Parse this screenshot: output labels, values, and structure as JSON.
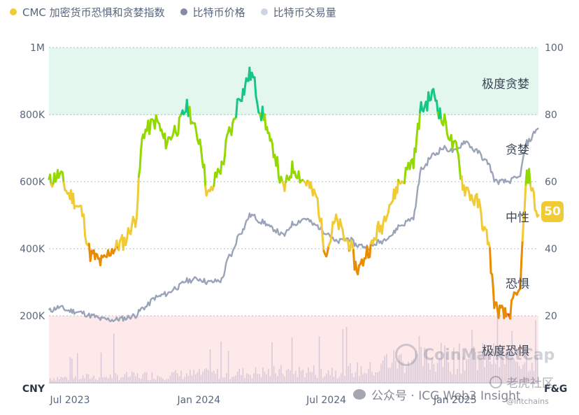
{
  "legend": [
    {
      "label": "CMC 加密货币恐惧和贪婪指数",
      "color": "#f0cb35"
    },
    {
      "label": "比特币价格",
      "color": "#858ca2"
    },
    {
      "label": "比特币交易量",
      "color": "#cfd3e6"
    }
  ],
  "left_axis": {
    "unit": "CNY",
    "ticks": [
      "1M",
      "800K",
      "600K",
      "400K",
      "200K"
    ]
  },
  "right_axis": {
    "unit": "F&G",
    "ticks": [
      "100",
      "80",
      "60",
      "40",
      "20"
    ]
  },
  "x_ticks": [
    "Jul 2023",
    "Jan 2024",
    "Jul 2024",
    "Jan 2025"
  ],
  "zones": {
    "extreme_greed": "极度贪婪",
    "greed": "贪婪",
    "neutral": "中性",
    "fear": "恐惧",
    "extreme_fear": "极度恐惧"
  },
  "current_value": "50",
  "watermarks": {
    "logo": "CoinMarketCap",
    "wechat": "公众号 · ICG Web3 Insight",
    "brand": "老虎社区",
    "handle": "@intchains"
  },
  "chart_data": {
    "type": "line",
    "x_range": [
      "2023-06-01",
      "2025-04-30"
    ],
    "ylim_price": [
      0,
      1000000
    ],
    "ylim_fng": [
      0,
      100
    ],
    "series": [
      {
        "name": "CMC 加密货币恐惧和贪婪指数",
        "axis": "right",
        "x": [
          "2023-06-01",
          "2023-06-15",
          "2023-07-01",
          "2023-07-15",
          "2023-08-01",
          "2023-08-15",
          "2023-09-01",
          "2023-09-15",
          "2023-10-01",
          "2023-10-15",
          "2023-11-01",
          "2023-11-15",
          "2023-12-01",
          "2023-12-15",
          "2024-01-01",
          "2024-01-15",
          "2024-02-01",
          "2024-02-15",
          "2024-03-01",
          "2024-03-15",
          "2024-04-01",
          "2024-04-15",
          "2024-05-01",
          "2024-05-15",
          "2024-06-01",
          "2024-06-15",
          "2024-07-01",
          "2024-07-15",
          "2024-08-01",
          "2024-08-15",
          "2024-09-01",
          "2024-09-15",
          "2024-10-01",
          "2024-10-15",
          "2024-11-01",
          "2024-11-15",
          "2024-12-01",
          "2024-12-15",
          "2025-01-01",
          "2025-01-15",
          "2025-02-01",
          "2025-02-15",
          "2025-03-01",
          "2025-03-15",
          "2025-04-01",
          "2025-04-15",
          "2025-04-30"
        ],
        "values": [
          60,
          62,
          56,
          52,
          38,
          36,
          40,
          42,
          48,
          75,
          78,
          72,
          76,
          82,
          73,
          56,
          64,
          75,
          86,
          92,
          80,
          70,
          58,
          64,
          60,
          56,
          40,
          48,
          42,
          34,
          40,
          46,
          54,
          60,
          66,
          82,
          86,
          78,
          70,
          58,
          54,
          44,
          22,
          20,
          26,
          62,
          50
        ]
      },
      {
        "name": "比特币价格",
        "axis": "left",
        "x": [
          "2023-06-01",
          "2023-06-15",
          "2023-07-01",
          "2023-07-15",
          "2023-08-01",
          "2023-08-15",
          "2023-09-01",
          "2023-09-15",
          "2023-10-01",
          "2023-10-15",
          "2023-11-01",
          "2023-11-15",
          "2023-12-01",
          "2023-12-15",
          "2024-01-01",
          "2024-01-15",
          "2024-02-01",
          "2024-02-15",
          "2024-03-01",
          "2024-03-15",
          "2024-04-01",
          "2024-04-15",
          "2024-05-01",
          "2024-05-15",
          "2024-06-01",
          "2024-06-15",
          "2024-07-01",
          "2024-07-15",
          "2024-08-01",
          "2024-08-15",
          "2024-09-01",
          "2024-09-15",
          "2024-10-01",
          "2024-10-15",
          "2024-11-01",
          "2024-11-15",
          "2024-12-01",
          "2024-12-15",
          "2025-01-01",
          "2025-01-15",
          "2025-02-01",
          "2025-02-15",
          "2025-03-01",
          "2025-03-15",
          "2025-04-01",
          "2025-04-15",
          "2025-04-30"
        ],
        "values": [
          215000,
          225000,
          215000,
          210000,
          200000,
          190000,
          188000,
          192000,
          200000,
          225000,
          255000,
          265000,
          285000,
          305000,
          310000,
          300000,
          305000,
          380000,
          450000,
          500000,
          480000,
          460000,
          440000,
          475000,
          490000,
          470000,
          450000,
          420000,
          430000,
          410000,
          405000,
          420000,
          440000,
          470000,
          490000,
          640000,
          680000,
          700000,
          690000,
          720000,
          690000,
          660000,
          600000,
          600000,
          610000,
          720000,
          760000
        ]
      }
    ]
  }
}
